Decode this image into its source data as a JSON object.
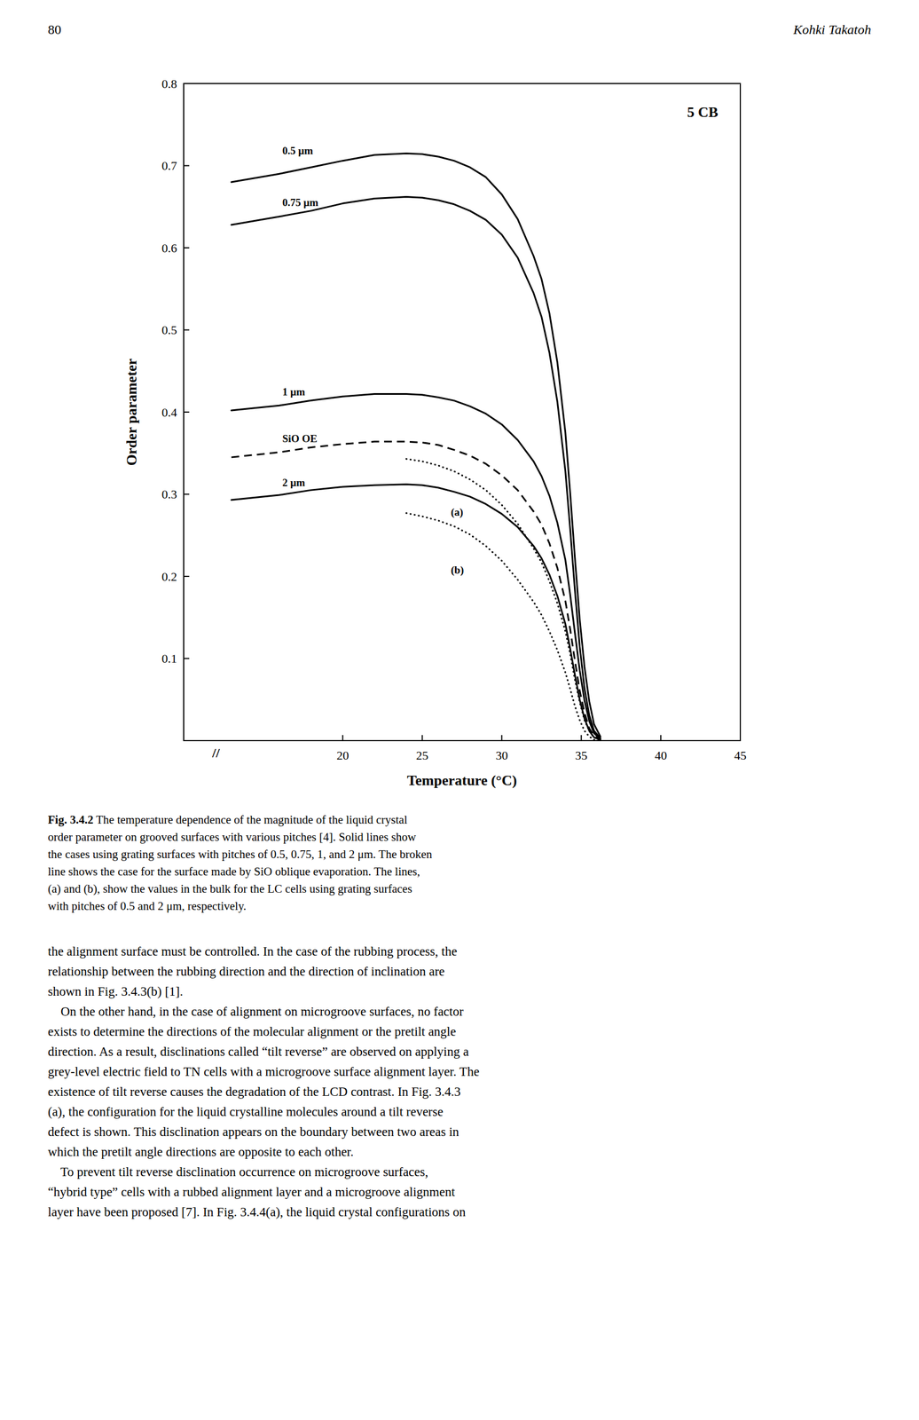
{
  "page_number": "80",
  "page_header": "Kohki Takatoh",
  "figure_label": "Fig. 3.4.2",
  "caption_lines": [
    " The temperature dependence of the magnitude of the liquid crystal",
    "order parameter on grooved surfaces with various pitches [4]. Solid lines show",
    "the cases using grating surfaces with pitches of 0.5, 0.75, 1, and 2 μm. The broken",
    "line shows the case for the surface made by SiO oblique evaporation. The lines,",
    "(a) and (b), show the values in the bulk for the LC cells using grating surfaces",
    "with pitches of 0.5 and 2 μm, respectively."
  ],
  "body_lines": [
    "the alignment surface must be controlled. In the case of the rubbing process, the",
    "relationship between the rubbing direction and the direction of inclination are",
    "shown in Fig. 3.4.3(b) [1].",
    "    On the other hand, in the case of alignment on microgroove surfaces, no factor",
    "exists to determine the directions of the molecular alignment or the pretilt angle",
    "direction. As a result, disclinations called “tilt reverse” are observed on applying a",
    "grey-level electric field to TN cells with a microgroove surface alignment layer. The",
    "existence of tilt reverse causes the degradation of the LCD contrast. In Fig. 3.4.3",
    "(a), the configuration for the liquid crystalline molecules around a tilt reverse",
    "defect is shown. This disclination appears on the boundary between two areas in",
    "which the pretilt angle directions are opposite to each other.",
    "    To prevent tilt reverse disclination occurrence on microgroove surfaces,",
    "“hybrid type” cells with a rubbed alignment layer and a microgroove alignment",
    "layer have been proposed [7]. In Fig. 3.4.4(a), the liquid crystal configurations on"
  ],
  "chart_data": {
    "type": "line",
    "title": "5 CB",
    "xlabel": "Temperature  (°C)",
    "ylabel": "Order parameter",
    "xlim": [
      10,
      45
    ],
    "ylim": [
      0.0,
      0.8
    ],
    "xticks": [
      20,
      25,
      30,
      35,
      40,
      45
    ],
    "yticks": [
      0.1,
      0.2,
      0.3,
      0.4,
      0.5,
      0.6,
      0.7,
      0.8
    ],
    "grid": false,
    "break_mark": "//",
    "series": [
      {
        "line_style": "solid",
        "color": "#000000",
        "x": [
          13,
          16,
          18,
          20,
          22,
          24,
          25,
          26,
          27,
          28,
          29,
          30,
          31,
          32,
          32.5,
          33,
          33.5,
          34,
          34.3,
          34.6,
          34.9,
          35.2,
          35.5,
          35.8,
          36.2
        ],
        "values": [
          0.68,
          0.69,
          0.698,
          0.706,
          0.713,
          0.715,
          0.714,
          0.711,
          0.706,
          0.698,
          0.686,
          0.665,
          0.635,
          0.59,
          0.562,
          0.52,
          0.46,
          0.375,
          0.302,
          0.222,
          0.148,
          0.09,
          0.048,
          0.02,
          0.005
        ]
      },
      {
        "line_style": "solid",
        "color": "#000000",
        "x": [
          13,
          16,
          18,
          20,
          22,
          24,
          25,
          26,
          27,
          28,
          29,
          30,
          31,
          32,
          32.5,
          33,
          33.5,
          34,
          34.3,
          34.6,
          34.9,
          35.2,
          35.5,
          35.8,
          36.2
        ],
        "values": [
          0.628,
          0.638,
          0.645,
          0.654,
          0.66,
          0.662,
          0.661,
          0.658,
          0.653,
          0.645,
          0.634,
          0.616,
          0.588,
          0.545,
          0.516,
          0.472,
          0.412,
          0.328,
          0.258,
          0.183,
          0.115,
          0.064,
          0.031,
          0.012,
          0.003
        ]
      },
      {
        "line_style": "solid",
        "color": "#000000",
        "x": [
          13,
          16,
          18,
          20,
          22,
          24,
          25,
          26,
          27,
          28,
          29,
          30,
          31,
          32,
          32.5,
          33,
          33.5,
          34,
          34.3,
          34.6,
          34.9,
          35.2,
          35.5,
          35.8,
          36.2
        ],
        "values": [
          0.402,
          0.408,
          0.414,
          0.419,
          0.422,
          0.422,
          0.421,
          0.418,
          0.414,
          0.407,
          0.398,
          0.385,
          0.366,
          0.34,
          0.322,
          0.298,
          0.265,
          0.22,
          0.178,
          0.131,
          0.086,
          0.049,
          0.024,
          0.009,
          0.002
        ]
      },
      {
        "line_style": "solid",
        "color": "#000000",
        "x": [
          13,
          16,
          18,
          20,
          22,
          24,
          25,
          26,
          27,
          28,
          29,
          30,
          31,
          32,
          32.5,
          33,
          33.5,
          34,
          34.3,
          34.6,
          34.9,
          35.2,
          35.5,
          35.8,
          36.2
        ],
        "values": [
          0.293,
          0.299,
          0.305,
          0.309,
          0.311,
          0.312,
          0.311,
          0.308,
          0.303,
          0.297,
          0.288,
          0.276,
          0.26,
          0.237,
          0.222,
          0.202,
          0.176,
          0.142,
          0.112,
          0.08,
          0.05,
          0.027,
          0.012,
          0.004,
          0.001
        ]
      },
      {
        "line_style": "dashed",
        "color": "#000000",
        "x": [
          13,
          16,
          18,
          20,
          22,
          24,
          25,
          26,
          27,
          28,
          29,
          30,
          31,
          32,
          32.5,
          33,
          33.5,
          34,
          34.3,
          34.6,
          34.9,
          35.2,
          35.5,
          35.8,
          36.2
        ],
        "values": [
          0.345,
          0.351,
          0.357,
          0.361,
          0.364,
          0.364,
          0.363,
          0.36,
          0.354,
          0.347,
          0.337,
          0.323,
          0.305,
          0.279,
          0.263,
          0.24,
          0.21,
          0.17,
          0.136,
          0.097,
          0.061,
          0.034,
          0.015,
          0.006,
          0.001
        ]
      },
      {
        "line_style": "dotted",
        "color": "#000000",
        "x": [
          24,
          25,
          26,
          27,
          28,
          29,
          30,
          31,
          32,
          32.5,
          33,
          33.5,
          34,
          34.3,
          34.6,
          34.9,
          35.2,
          35.5,
          35.8,
          36.2
        ],
        "values": [
          0.343,
          0.34,
          0.335,
          0.328,
          0.318,
          0.305,
          0.287,
          0.264,
          0.234,
          0.217,
          0.194,
          0.167,
          0.133,
          0.106,
          0.074,
          0.047,
          0.025,
          0.012,
          0.004,
          0.001
        ]
      },
      {
        "line_style": "dotted",
        "color": "#000000",
        "x": [
          24,
          25,
          26,
          27,
          28,
          29,
          30,
          31,
          32,
          32.5,
          33,
          33.5,
          34,
          34.3,
          34.6,
          34.9,
          35.2,
          35.5,
          35.8,
          36.2
        ],
        "values": [
          0.277,
          0.273,
          0.268,
          0.261,
          0.251,
          0.237,
          0.219,
          0.196,
          0.169,
          0.153,
          0.133,
          0.11,
          0.083,
          0.063,
          0.042,
          0.025,
          0.012,
          0.005,
          0.001,
          0.0
        ]
      }
    ],
    "annotations": [
      {
        "text": "0.5 μm",
        "x": 16.2,
        "y": 0.718
      },
      {
        "text": "0.75 μm",
        "x": 16.2,
        "y": 0.655
      },
      {
        "text": "1 μm",
        "x": 16.2,
        "y": 0.425
      },
      {
        "text": "SiO OE",
        "x": 16.2,
        "y": 0.368
      },
      {
        "text": "2 μm",
        "x": 16.2,
        "y": 0.314
      },
      {
        "text": "(a)",
        "x": 26.8,
        "y": 0.278
      },
      {
        "text": "(b)",
        "x": 26.8,
        "y": 0.208
      }
    ]
  }
}
